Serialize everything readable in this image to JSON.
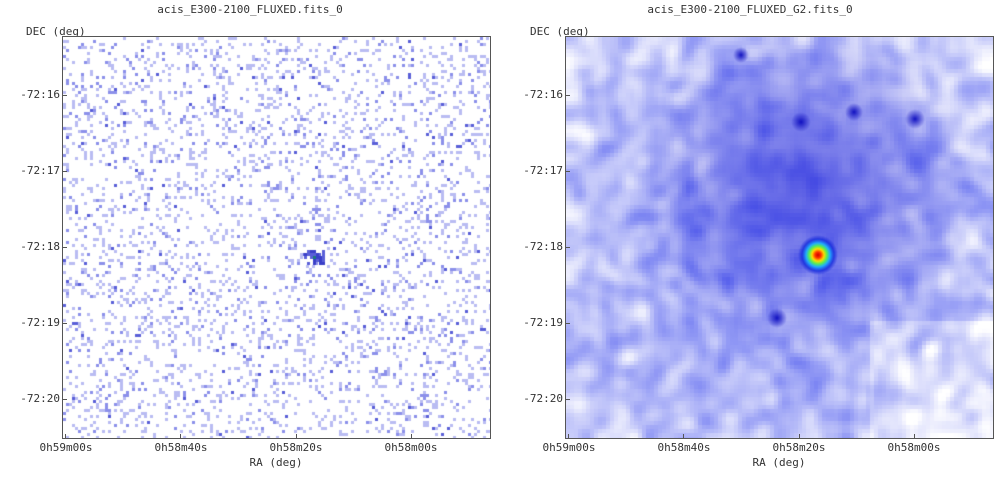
{
  "left": {
    "title": "acis_E300-2100_FLUXED.fits_0",
    "ylabel": "DEC (deg)",
    "xlabel": "RA (deg)",
    "yticks": [
      "-72:16",
      "-72:17",
      "-72:18",
      "-72:19",
      "-72:20"
    ],
    "xticks": [
      "0h59m00s",
      "0h58m40s",
      "0h58m20s",
      "0h58m00s"
    ],
    "colormap": "sparse-blue"
  },
  "right": {
    "title": "acis_E300-2100_FLUXED_G2.fits_0",
    "ylabel": "DEC (deg)",
    "xlabel": "RA (deg)",
    "yticks": [
      "-72:16",
      "-72:17",
      "-72:18",
      "-72:19",
      "-72:20"
    ],
    "xticks": [
      "0h59m00s",
      "0h58m40s",
      "0h58m20s",
      "0h58m00s"
    ],
    "colormap": "smoothed-blue-to-red"
  }
}
